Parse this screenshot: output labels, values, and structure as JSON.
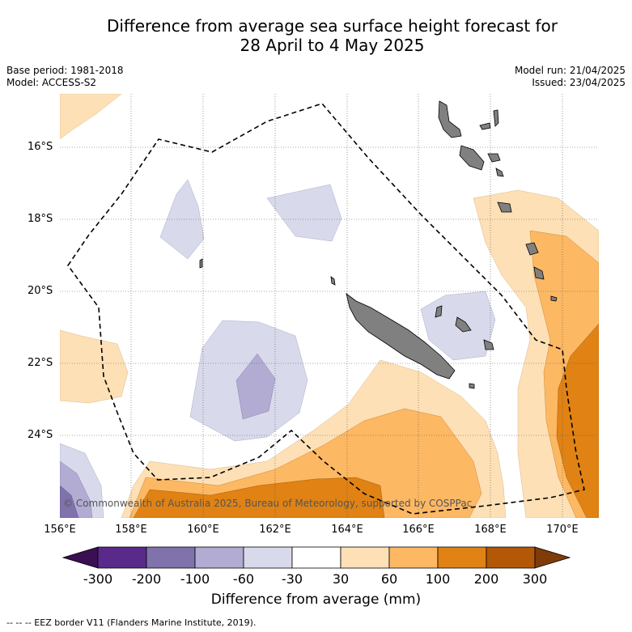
{
  "title_line1": "Difference from average sea surface height forecast for",
  "title_line2": "28 April to 4 May 2025",
  "meta_left": [
    "Base period: 1981-2018",
    "Model: ACCESS-S2"
  ],
  "meta_right": [
    "Model run: 21/04/2025",
    "Issued: 23/04/2025"
  ],
  "lat_labels": [
    "16°S",
    "18°S",
    "20°S",
    "22°S",
    "24°S"
  ],
  "lon_labels": [
    "156°E",
    "158°E",
    "160°E",
    "162°E",
    "164°E",
    "166°E",
    "168°E",
    "170°E"
  ],
  "copyright": "© Commonwealth of Australia 2025, Bureau of Meteorology, supported by COSPPac",
  "colorbar": {
    "title": "Difference from average (mm)",
    "labels": [
      "-300",
      "-200",
      "-100",
      "-60",
      "-30",
      "30",
      "60",
      "100",
      "200",
      "300"
    ],
    "colors": [
      "#3b0f54",
      "#5a2a8a",
      "#8073ac",
      "#b2abd2",
      "#d8daeb",
      "#ffffff",
      "#fee0b6",
      "#fdb863",
      "#e08214",
      "#b35806",
      "#7f3b08"
    ]
  },
  "footer": "-- -- -- EEZ border V11 (Flanders Marine Institute, 2019)."
}
